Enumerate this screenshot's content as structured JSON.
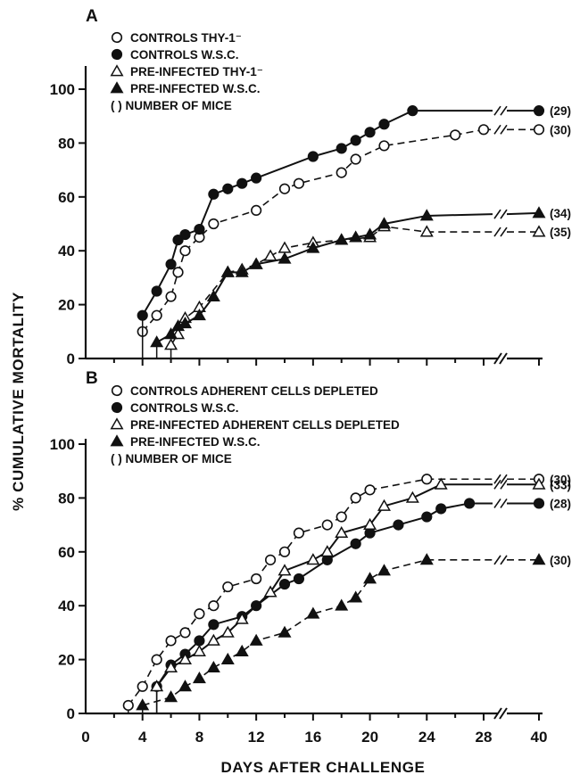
{
  "chart_data": [
    {
      "panel": "A",
      "type": "line",
      "ylabel": "% CUMULATIVE MORTALITY",
      "ylim": [
        0,
        100
      ],
      "yticks": [
        "0",
        "20",
        "40",
        "60",
        "80",
        "100"
      ],
      "xlabel": "",
      "xticks": [],
      "grid": false,
      "legend_position": "top-left",
      "legend_note": "( ) NUMBER OF MICE",
      "series": [
        {
          "name": "CONTROLS THY-1⁻",
          "marker": "open-circle",
          "line": "dashed",
          "count_label": "(30)",
          "x": [
            4,
            5,
            6,
            6.5,
            7,
            8,
            9,
            12,
            14,
            15,
            18,
            19,
            21,
            26,
            28,
            40
          ],
          "y": [
            10,
            16,
            23,
            32,
            40,
            45,
            50,
            55,
            63,
            65,
            69,
            74,
            79,
            83,
            85,
            85
          ]
        },
        {
          "name": "CONTROLS W.S.C.",
          "marker": "filled-circle",
          "line": "solid",
          "count_label": "(29)",
          "x": [
            4,
            5,
            6,
            6.5,
            7,
            8,
            9,
            10,
            11,
            12,
            16,
            18,
            19,
            20,
            21,
            23,
            40
          ],
          "y": [
            16,
            25,
            35,
            44,
            46,
            48,
            61,
            63,
            65,
            67,
            75,
            78,
            81,
            84,
            87,
            92,
            92
          ]
        },
        {
          "name": "PRE-INFECTED THY-1⁻",
          "marker": "open-triangle",
          "line": "dashed",
          "count_label": "(35)",
          "x": [
            6,
            6.5,
            7,
            8,
            10,
            11,
            12,
            13,
            14,
            16,
            18,
            20,
            21,
            24,
            40
          ],
          "y": [
            5,
            9,
            15,
            19,
            32,
            33,
            35,
            38,
            41,
            43,
            44,
            45,
            49,
            47,
            47
          ]
        },
        {
          "name": "PRE-INFECTED W.S.C.",
          "marker": "filled-triangle",
          "line": "solid",
          "count_label": "(34)",
          "x": [
            5,
            6,
            6.5,
            7,
            8,
            9,
            10,
            11,
            12,
            14,
            16,
            18,
            19,
            20,
            21,
            24,
            40
          ],
          "y": [
            6,
            9,
            12,
            13,
            16,
            23,
            32,
            32,
            35,
            37,
            41,
            44,
            45,
            46,
            50,
            53,
            54
          ]
        }
      ]
    },
    {
      "panel": "B",
      "type": "line",
      "ylabel": "% CUMULATIVE MORTALITY",
      "ylim": [
        0,
        100
      ],
      "yticks": [
        "0",
        "20",
        "40",
        "60",
        "80",
        "100"
      ],
      "xlabel": "DAYS AFTER CHALLENGE",
      "xticks": [
        "0",
        "4",
        "8",
        "12",
        "16",
        "20",
        "24",
        "28",
        "40"
      ],
      "grid": false,
      "legend_position": "top-left",
      "legend_note": "( ) NUMBER OF MICE",
      "series": [
        {
          "name": "CONTROLS ADHERENT CELLS DEPLETED",
          "marker": "open-circle",
          "line": "dashed",
          "count_label": "(30)",
          "x": [
            3,
            4,
            5,
            6,
            7,
            8,
            9,
            10,
            12,
            13,
            14,
            15,
            17,
            18,
            19,
            20,
            24,
            40
          ],
          "y": [
            3,
            10,
            20,
            27,
            30,
            37,
            40,
            47,
            50,
            57,
            60,
            67,
            70,
            73,
            80,
            83,
            87,
            87
          ]
        },
        {
          "name": "CONTROLS W.S.C.",
          "marker": "filled-circle",
          "line": "solid",
          "count_label": "(28)",
          "x": [
            5,
            6,
            7,
            8,
            9,
            11,
            12,
            14,
            15,
            17,
            19,
            20,
            22,
            24,
            25,
            27,
            40
          ],
          "y": [
            10,
            18,
            22,
            27,
            33,
            36,
            40,
            48,
            50,
            57,
            63,
            67,
            70,
            73,
            76,
            78,
            78
          ]
        },
        {
          "name": "PRE-INFECTED ADHERENT CELLS DEPLETED",
          "marker": "open-triangle",
          "line": "solid",
          "count_label": "(33)",
          "x": [
            5,
            6,
            7,
            8,
            9,
            10,
            11,
            13,
            14,
            16,
            17,
            18,
            20,
            21,
            23,
            25,
            40
          ],
          "y": [
            10,
            17,
            20,
            23,
            27,
            30,
            35,
            45,
            53,
            57,
            60,
            67,
            70,
            77,
            80,
            85,
            85
          ]
        },
        {
          "name": "PRE-INFECTED W.S.C.",
          "marker": "filled-triangle",
          "line": "dashed",
          "count_label": "(30)",
          "x": [
            4,
            6,
            7,
            8,
            9,
            10,
            11,
            12,
            14,
            16,
            18,
            19,
            20,
            21,
            24,
            40
          ],
          "y": [
            3,
            6,
            10,
            13,
            17,
            20,
            23,
            27,
            30,
            37,
            40,
            43,
            50,
            53,
            57,
            57
          ]
        }
      ]
    }
  ]
}
